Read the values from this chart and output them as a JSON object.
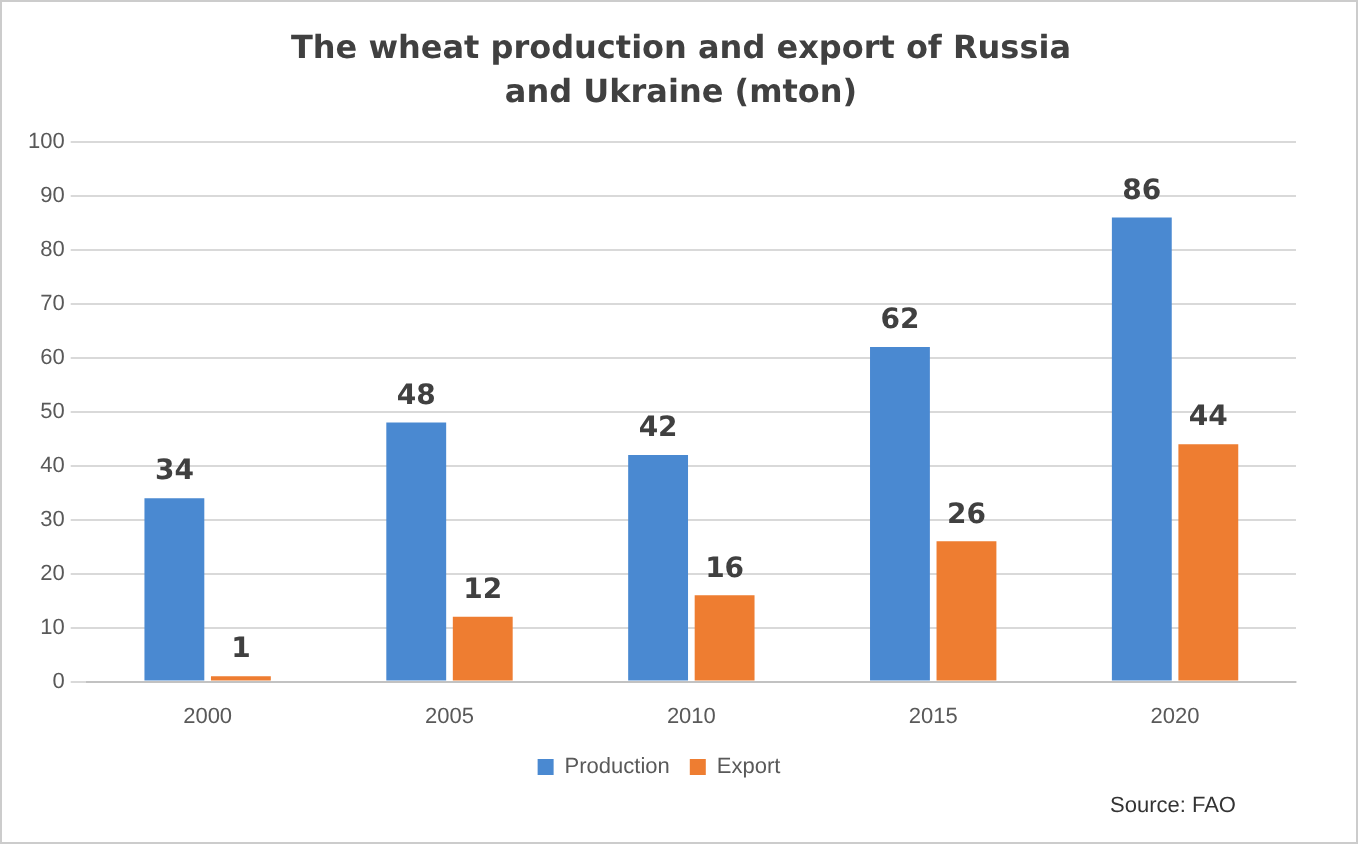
{
  "chart_data": {
    "type": "bar",
    "title": "The wheat production and export of Russia and Ukraine (mton)",
    "categories": [
      "2000",
      "2005",
      "2010",
      "2015",
      "2020"
    ],
    "series": [
      {
        "name": "Production",
        "color": "#4a89d1",
        "values": [
          34,
          48,
          42,
          62,
          86
        ]
      },
      {
        "name": "Export",
        "color": "#ee7d31",
        "values": [
          1,
          12,
          16,
          26,
          44
        ]
      }
    ],
    "ylim": [
      0,
      100
    ],
    "yticks": [
      0,
      10,
      20,
      30,
      40,
      50,
      60,
      70,
      80,
      90,
      100
    ],
    "grid": "y",
    "legend": "bottom",
    "data_labels": true,
    "annotations": [
      "Source: FAO"
    ]
  }
}
